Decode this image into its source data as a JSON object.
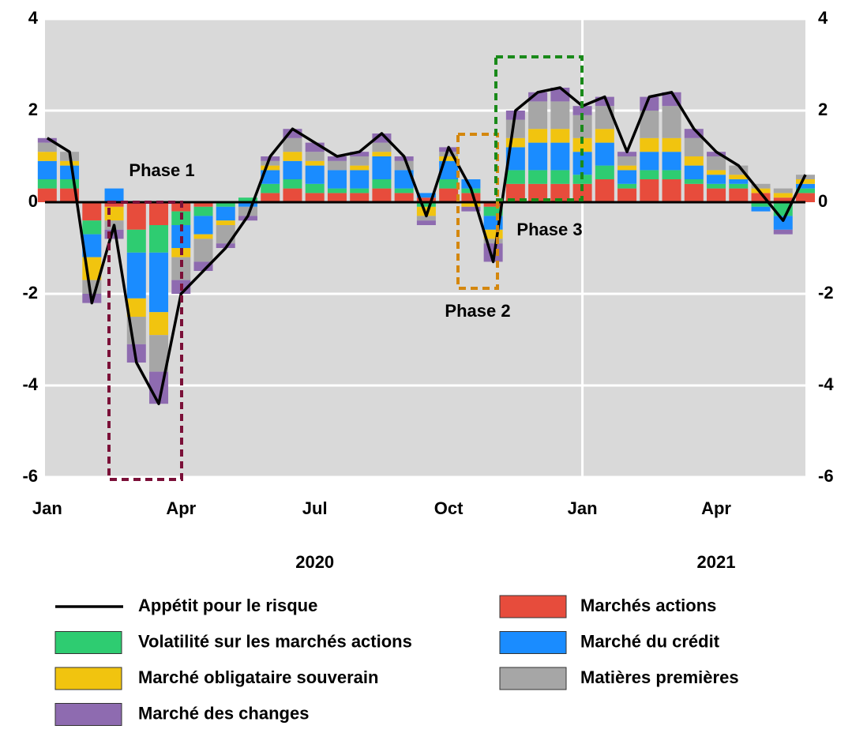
{
  "chart_data": {
    "type": "bar",
    "stacked": true,
    "x": [
      0,
      0.5,
      1,
      1.5,
      2,
      2.5,
      3,
      3.5,
      4,
      4.5,
      5,
      5.5,
      6,
      6.5,
      7,
      7.5,
      8,
      8.5,
      9,
      9.5,
      10,
      10.5,
      11,
      11.5,
      12,
      12.5,
      13,
      13.5,
      14,
      14.5,
      15,
      15.5,
      16,
      16.5,
      17
    ],
    "xlim": [
      -0.05,
      17.0
    ],
    "xticks": [
      {
        "value": 0,
        "label": "Jan"
      },
      {
        "value": 3,
        "label": "Apr"
      },
      {
        "value": 6,
        "label": "Jul"
      },
      {
        "value": 9,
        "label": "Oct"
      },
      {
        "value": 12,
        "label": "Jan"
      },
      {
        "value": 15,
        "label": "Apr"
      }
    ],
    "xgroups": [
      {
        "value": 6,
        "label": "2020"
      },
      {
        "value": 15,
        "label": "2021"
      }
    ],
    "ylim": [
      -6,
      4
    ],
    "yticks": [
      -6,
      -4,
      -2,
      0,
      2,
      4
    ],
    "y2lim": [
      -6,
      4
    ],
    "y2ticks": [
      -6,
      -4,
      -2,
      0,
      2,
      4
    ],
    "grid": true,
    "background": "#d9d9d9",
    "series": [
      {
        "name": "Appétit pour le risque",
        "type": "line",
        "color": "#000000",
        "values": [
          1.4,
          1.1,
          -2.2,
          -0.5,
          -3.5,
          -4.4,
          -2.0,
          -1.5,
          -1.0,
          -0.3,
          1.0,
          1.6,
          1.3,
          1.0,
          1.1,
          1.5,
          1.0,
          -0.3,
          1.2,
          0.3,
          -1.3,
          2.0,
          2.4,
          2.5,
          2.1,
          2.3,
          1.1,
          2.3,
          2.4,
          1.6,
          1.1,
          0.8,
          0.2,
          -0.4,
          0.6
        ]
      },
      {
        "name": "Marchés actions",
        "color": "#e74c3c",
        "values": [
          0.3,
          0.3,
          -0.4,
          -0.1,
          -0.6,
          -0.5,
          -0.2,
          -0.1,
          0.0,
          0.0,
          0.2,
          0.3,
          0.2,
          0.2,
          0.2,
          0.3,
          0.2,
          0.1,
          0.3,
          0.2,
          -0.1,
          0.4,
          0.4,
          0.4,
          0.4,
          0.5,
          0.3,
          0.5,
          0.5,
          0.4,
          0.3,
          0.3,
          0.2,
          0.1,
          0.2
        ]
      },
      {
        "name": "Volatilité sur les marchés actions",
        "color": "#2ecc71",
        "values": [
          0.2,
          0.2,
          -0.3,
          0.0,
          -0.5,
          -0.6,
          -0.3,
          -0.2,
          -0.1,
          0.1,
          0.2,
          0.2,
          0.2,
          0.1,
          0.1,
          0.2,
          0.1,
          -0.1,
          0.2,
          0.1,
          -0.2,
          0.3,
          0.3,
          0.3,
          0.2,
          0.3,
          0.1,
          0.2,
          0.2,
          0.1,
          0.1,
          0.1,
          -0.1,
          -0.3,
          0.1
        ]
      },
      {
        "name": "Marché du crédit",
        "color": "#1a8cff",
        "values": [
          0.4,
          0.3,
          -0.5,
          0.3,
          -1.0,
          -1.3,
          -0.5,
          -0.4,
          -0.3,
          -0.1,
          0.3,
          0.4,
          0.4,
          0.4,
          0.4,
          0.5,
          0.4,
          0.1,
          0.4,
          0.2,
          -0.3,
          0.5,
          0.6,
          0.6,
          0.5,
          0.5,
          0.3,
          0.4,
          0.4,
          0.3,
          0.2,
          0.1,
          -0.1,
          -0.3,
          0.1
        ]
      },
      {
        "name": "Marché obligataire souverain",
        "color": "#f1c40f",
        "values": [
          0.2,
          0.1,
          -0.5,
          -0.3,
          -0.4,
          -0.5,
          -0.2,
          -0.1,
          -0.1,
          0.0,
          0.1,
          0.2,
          0.1,
          0.0,
          0.1,
          0.1,
          0.0,
          -0.2,
          0.1,
          -0.1,
          -0.2,
          0.2,
          0.3,
          0.3,
          0.3,
          0.3,
          0.1,
          0.3,
          0.3,
          0.2,
          0.1,
          0.1,
          0.1,
          0.1,
          0.1
        ]
      },
      {
        "name": "Matières premières",
        "color": "#a6a6a6",
        "values": [
          0.2,
          0.2,
          -0.3,
          -0.2,
          -0.6,
          -0.8,
          -0.5,
          -0.5,
          -0.4,
          -0.2,
          0.1,
          0.3,
          0.2,
          0.2,
          0.2,
          0.2,
          0.2,
          -0.1,
          0.1,
          0.0,
          -0.1,
          0.4,
          0.6,
          0.6,
          0.5,
          0.5,
          0.2,
          0.6,
          0.7,
          0.4,
          0.3,
          0.2,
          0.1,
          0.1,
          0.1
        ]
      },
      {
        "name": "Marché des changes",
        "color": "#8e6bb0",
        "values": [
          0.1,
          0.0,
          -0.2,
          -0.2,
          -0.4,
          -0.7,
          -0.3,
          -0.2,
          -0.1,
          -0.1,
          0.1,
          0.2,
          0.2,
          0.1,
          0.1,
          0.2,
          0.1,
          -0.1,
          0.1,
          -0.1,
          -0.4,
          0.2,
          0.2,
          0.3,
          0.2,
          0.2,
          0.1,
          0.3,
          0.3,
          0.2,
          0.1,
          0.0,
          0.0,
          -0.1,
          0.0
        ]
      }
    ],
    "annotations": [
      {
        "text": "Phase 1",
        "color": "#800080"
      },
      {
        "text": "Phase 2",
        "color": "#d4870e"
      },
      {
        "text": "Phase 3",
        "color": "#1a8a1a"
      }
    ]
  }
}
